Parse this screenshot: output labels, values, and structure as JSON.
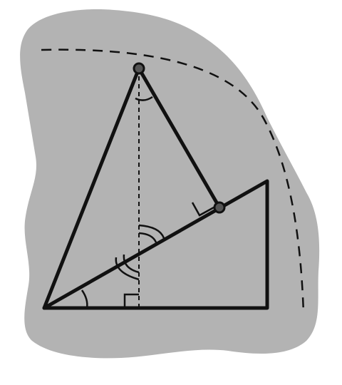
{
  "diagram": {
    "description_free": true,
    "colors": {
      "background": "#ffffff",
      "blob": "#b3b3b3",
      "ink": "#111111",
      "point_fill": "#555555"
    },
    "elements": {
      "construction_arc": "dashed-circular-arc",
      "outer_triangle": "triangle",
      "inner_right_triangle": "right-triangle",
      "altitude": "dashed-vertical-line",
      "perpendicular_foot": "point",
      "apex": "point"
    },
    "angle_marks": {
      "base_angle": "single-arc",
      "altitude_angle": "double-arc",
      "apex_angle": "single-arc",
      "right_angle_base": "square-mark",
      "right_angle_foot": "square-mark"
    }
  }
}
